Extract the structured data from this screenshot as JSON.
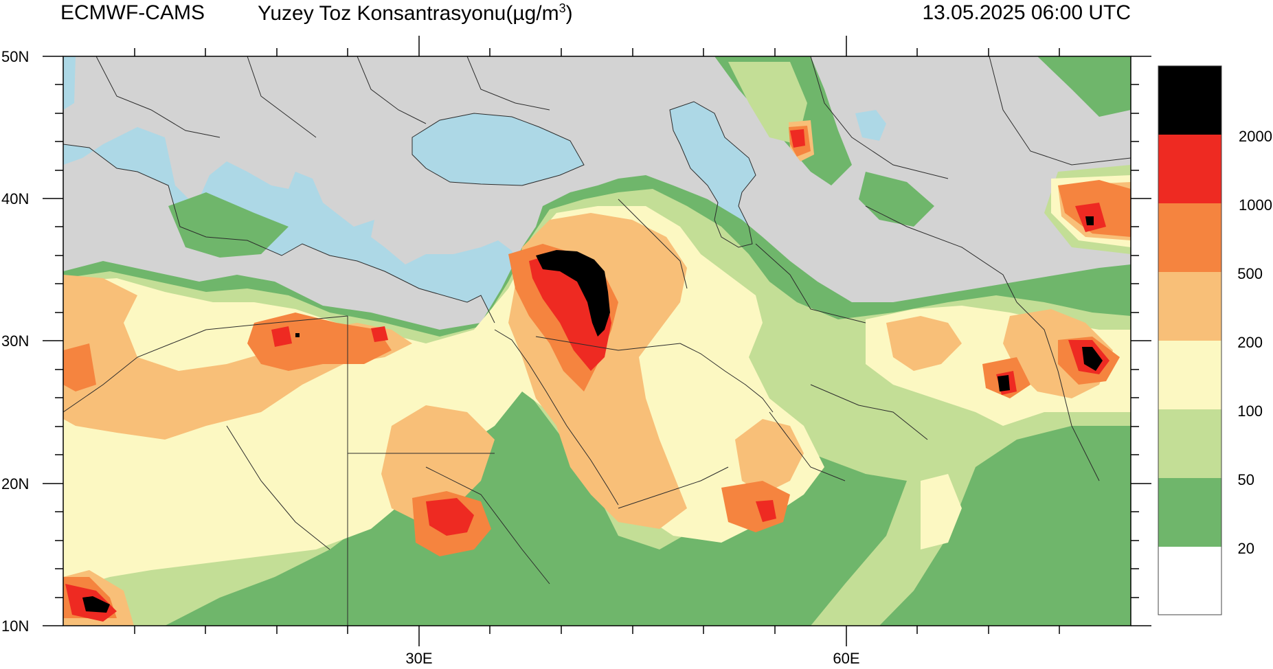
{
  "header": {
    "source": "ECMWF-CAMS",
    "variable": "Yuzey Toz Konsantrasyonu(µg/m",
    "variable_unit_exponent": "3",
    "variable_close": ")",
    "valid_time": "13.05.2025 06:00 UTC"
  },
  "axes": {
    "lat_labels": [
      "50N",
      "40N",
      "30N",
      "20N",
      "10N"
    ],
    "lon_labels": [
      "30E",
      "60E"
    ]
  },
  "colorbar": {
    "levels": [
      "2000",
      "1000",
      "500",
      "200",
      "100",
      "50",
      "20"
    ],
    "colors": [
      "#000000",
      "#ee2a22",
      "#f5843f",
      "#f8bf78",
      "#fcf8c2",
      "#c3de96",
      "#6fb66b",
      "#ffffff"
    ]
  },
  "palette": {
    "sea": "#add8e6",
    "land_nodata": "#d3d3d3",
    "border": "#2b2b2b"
  }
}
